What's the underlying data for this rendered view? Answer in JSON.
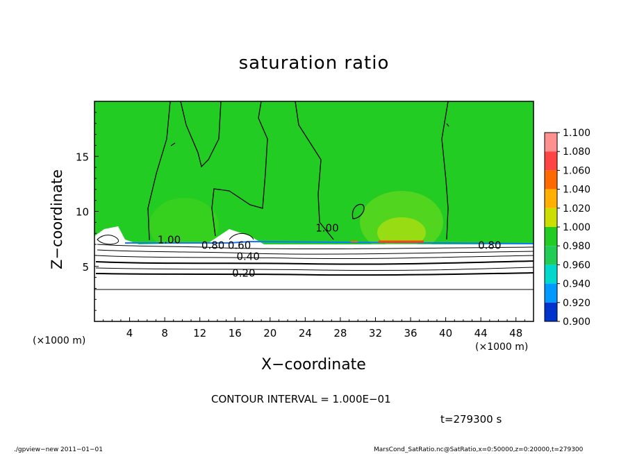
{
  "title": "saturation ratio",
  "xlabel": "X−coordinate",
  "ylabel": "Z−coordinate",
  "x_unit": "(×1000 m)",
  "y_unit": "(×1000 m)",
  "contour_interval": "CONTOUR INTERVAL = 1.000E−01",
  "time_label": "t=279300 s",
  "footer_left": "./gpview−new   2011−01−01",
  "footer_right": "MarsCond_SatRatio.nc@SatRatio,x=0:50000,z=0:20000,t=279300",
  "chart_data": {
    "type": "heatmap",
    "title": "saturation ratio",
    "xlabel": "X−coordinate",
    "ylabel": "Z−coordinate",
    "xlim": [
      0,
      50
    ],
    "ylim": [
      0,
      20
    ],
    "x_ticks": [
      4,
      8,
      12,
      16,
      20,
      24,
      28,
      32,
      36,
      40,
      44,
      48
    ],
    "y_ticks": [
      5,
      10,
      15
    ],
    "colorbar": {
      "levels": [
        1.1,
        1.08,
        1.06,
        1.04,
        1.02,
        1.0,
        0.98,
        0.96,
        0.94,
        0.92,
        0.9
      ],
      "labels": [
        "1.100",
        "1.080",
        "1.060",
        "1.040",
        "1.020",
        "1.000",
        "0.980",
        "0.960",
        "0.940",
        "0.920",
        "0.900"
      ],
      "colors": [
        "#ff9090",
        "#ff4444",
        "#ff6a00",
        "#ffb000",
        "#ccdd00",
        "#22cc22",
        "#22cc55",
        "#00d8cc",
        "#0099ff",
        "#0033cc",
        "#330099"
      ]
    },
    "contour_labels": [
      {
        "text": "1.00",
        "x": 8.5,
        "z": 7.4
      },
      {
        "text": "0.80",
        "x": 13.5,
        "z": 6.9
      },
      {
        "text": "0.60",
        "x": 16.5,
        "z": 6.9
      },
      {
        "text": "0.40",
        "x": 17.5,
        "z": 5.9
      },
      {
        "text": "0.20",
        "x": 17.0,
        "z": 4.4
      },
      {
        "text": "1.00",
        "x": 26.5,
        "z": 8.5
      },
      {
        "text": "0.80",
        "x": 45.0,
        "z": 6.9
      }
    ],
    "background_value": 1.0,
    "low_region_top_z": 7.2
  }
}
